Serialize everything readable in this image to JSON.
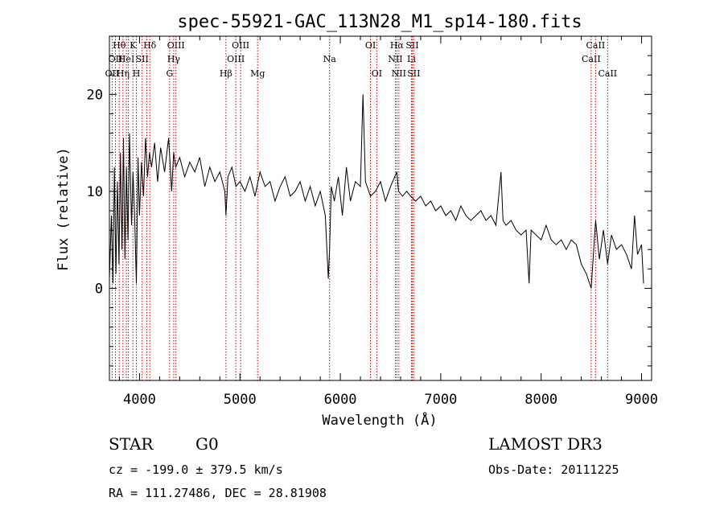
{
  "chart_data": {
    "type": "line",
    "title": "spec-55921-GAC_113N28_M1_sp14-180.fits",
    "xlabel": "Wavelength (Å)",
    "ylabel": "Flux (relative)",
    "xlim": [
      3700,
      9100
    ],
    "ylim": [
      -9.5,
      26
    ],
    "x_ticks": [
      4000,
      5000,
      6000,
      7000,
      8000,
      9000
    ],
    "y_ticks": [
      0,
      10,
      20
    ],
    "grid": false,
    "series": [
      {
        "name": "spectrum",
        "x": [
          3700,
          3720,
          3735,
          3750,
          3765,
          3780,
          3795,
          3810,
          3825,
          3840,
          3855,
          3870,
          3885,
          3900,
          3920,
          3935,
          3950,
          3968,
          3985,
          4000,
          4020,
          4040,
          4060,
          4080,
          4100,
          4120,
          4150,
          4180,
          4210,
          4250,
          4290,
          4320,
          4340,
          4360,
          4400,
          4450,
          4500,
          4550,
          4600,
          4650,
          4700,
          4750,
          4800,
          4850,
          4861,
          4880,
          4920,
          4960,
          5000,
          5050,
          5100,
          5150,
          5200,
          5250,
          5300,
          5350,
          5400,
          5450,
          5500,
          5550,
          5600,
          5650,
          5700,
          5750,
          5800,
          5850,
          5880,
          5893,
          5910,
          5940,
          5980,
          6020,
          6060,
          6100,
          6150,
          6200,
          6225,
          6250,
          6300,
          6350,
          6400,
          6450,
          6500,
          6563,
          6580,
          6620,
          6660,
          6700,
          6750,
          6800,
          6850,
          6900,
          6950,
          7000,
          7050,
          7100,
          7150,
          7200,
          7250,
          7300,
          7350,
          7400,
          7450,
          7500,
          7550,
          7600,
          7620,
          7650,
          7700,
          7750,
          7800,
          7850,
          7880,
          7900,
          7950,
          8000,
          8050,
          8100,
          8150,
          8200,
          8250,
          8300,
          8350,
          8400,
          8450,
          8498,
          8542,
          8580,
          8620,
          8662,
          8700,
          8750,
          8800,
          8850,
          8900,
          8930,
          8960,
          9000,
          9020
        ],
        "values": [
          1.0,
          7.5,
          0.5,
          12.5,
          1.5,
          11.0,
          2.5,
          14.0,
          4.0,
          15.5,
          3.0,
          12.5,
          5.0,
          16.0,
          6.5,
          12.0,
          8.0,
          0.5,
          13.5,
          7.5,
          13.0,
          9.5,
          15.5,
          11.5,
          14.0,
          12.5,
          15.0,
          11.0,
          14.5,
          12.0,
          15.5,
          10.0,
          14.0,
          12.5,
          13.5,
          11.5,
          13.0,
          12.0,
          13.5,
          10.5,
          12.5,
          11.0,
          12.0,
          10.0,
          7.5,
          11.5,
          12.5,
          10.5,
          11.0,
          10.0,
          11.5,
          9.5,
          12.0,
          10.5,
          11.0,
          9.0,
          10.5,
          11.5,
          9.5,
          10.0,
          11.0,
          9.0,
          10.5,
          8.5,
          10.0,
          7.5,
          1.0,
          4.0,
          10.5,
          9.0,
          11.5,
          7.5,
          12.5,
          9.0,
          11.0,
          10.5,
          20.0,
          11.0,
          9.5,
          10.0,
          11.0,
          9.0,
          10.5,
          12.0,
          10.0,
          9.5,
          10.0,
          9.5,
          9.0,
          9.5,
          8.5,
          9.0,
          8.0,
          8.5,
          7.5,
          8.0,
          7.0,
          8.5,
          7.5,
          7.0,
          7.5,
          8.0,
          7.0,
          7.5,
          6.5,
          12.0,
          7.0,
          6.5,
          7.0,
          6.0,
          5.5,
          6.0,
          0.5,
          6.0,
          5.5,
          5.0,
          6.5,
          5.0,
          4.5,
          5.0,
          4.0,
          5.0,
          4.5,
          2.5,
          1.5,
          0.0,
          7.0,
          3.0,
          6.0,
          2.5,
          5.5,
          4.0,
          4.5,
          3.5,
          2.0,
          7.5,
          3.5,
          4.5,
          0.5
        ]
      }
    ],
    "line_markers": [
      {
        "x": 3727,
        "label": "OII",
        "row": 2
      },
      {
        "x": 3760,
        "label": "OII",
        "row": 1
      },
      {
        "x": 3798,
        "label": "Hθ",
        "row": 0
      },
      {
        "x": 3835,
        "label": "Hη",
        "row": 2
      },
      {
        "x": 3869,
        "label": "HeI",
        "row": 1
      },
      {
        "x": 3889,
        "label": "",
        "row": 0
      },
      {
        "x": 3934,
        "label": "K",
        "row": 0
      },
      {
        "x": 3969,
        "label": "H",
        "row": 2
      },
      {
        "x": 4026,
        "label": "SII",
        "row": 1
      },
      {
        "x": 4072,
        "label": "",
        "row": 0
      },
      {
        "x": 4102,
        "label": "Hδ",
        "row": 0
      },
      {
        "x": 4300,
        "label": "G",
        "row": 2
      },
      {
        "x": 4340,
        "label": "Hγ",
        "row": 1
      },
      {
        "x": 4363,
        "label": "OIII",
        "row": 0
      },
      {
        "x": 4861,
        "label": "Hβ",
        "row": 2
      },
      {
        "x": 4959,
        "label": "OIII",
        "row": 1
      },
      {
        "x": 5007,
        "label": "OIII",
        "row": 0
      },
      {
        "x": 5176,
        "label": "Mg",
        "row": 2
      },
      {
        "x": 5893,
        "label": "Na",
        "row": 1
      },
      {
        "x": 6300,
        "label": "OI",
        "row": 0
      },
      {
        "x": 6363,
        "label": "OI",
        "row": 2
      },
      {
        "x": 6548,
        "label": "NII",
        "row": 1
      },
      {
        "x": 6563,
        "label": "Hα",
        "row": 0
      },
      {
        "x": 6583,
        "label": "NII",
        "row": 2
      },
      {
        "x": 6708,
        "label": "Li",
        "row": 1
      },
      {
        "x": 6716,
        "label": "SII",
        "row": 0
      },
      {
        "x": 6731,
        "label": "SII",
        "row": 2
      },
      {
        "x": 8498,
        "label": "CaII",
        "row": 1
      },
      {
        "x": 8542,
        "label": "CaII",
        "row": 0
      },
      {
        "x": 8662,
        "label": "CaII",
        "row": 2
      }
    ],
    "colors": {
      "spectrum": "#000000",
      "marker": "#cc0000",
      "axis": "#000000"
    }
  },
  "info": {
    "object_type": "STAR",
    "subclass": "G0",
    "cz_text": "cz = -199.0 ± 379.5 km/s",
    "coords_text": "RA = 111.27486, DEC =  28.81908",
    "survey": "LAMOST DR3",
    "obs_date": "Obs-Date: 20111225"
  }
}
